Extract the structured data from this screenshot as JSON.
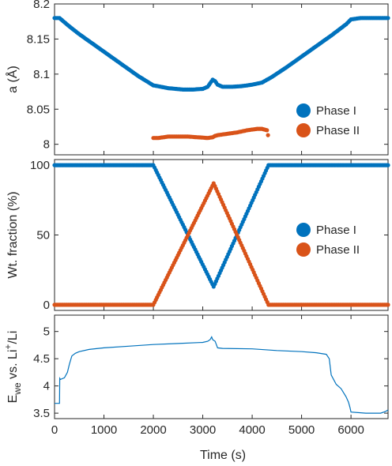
{
  "chart_data": [
    {
      "type": "scatter",
      "ylabel": "a (Å)",
      "xlim": [
        0,
        6750
      ],
      "ylim": [
        7.985,
        8.2
      ],
      "yticks": [
        "8",
        "8.05",
        "8.1",
        "8.15",
        "8.2"
      ],
      "grid": false,
      "legend_placement": "bottom-right",
      "legend": [
        "Phase I",
        "Phase II"
      ],
      "series": [
        {
          "name": "Phase I",
          "color": "#0072BD",
          "x": [
            0,
            100,
            150,
            300,
            500,
            800,
            1100,
            1400,
            1700,
            2000,
            2300,
            2600,
            2800,
            3000,
            3100,
            3150,
            3200,
            3250,
            3300,
            3400,
            3600,
            3800,
            4000,
            4200,
            4400,
            4700,
            5000,
            5300,
            5600,
            5900,
            6000,
            6200,
            6400,
            6600,
            6750
          ],
          "y": [
            8.18,
            8.18,
            8.177,
            8.168,
            8.157,
            8.142,
            8.127,
            8.112,
            8.097,
            8.084,
            8.08,
            8.078,
            8.078,
            8.079,
            8.082,
            8.087,
            8.092,
            8.09,
            8.085,
            8.082,
            8.082,
            8.083,
            8.085,
            8.088,
            8.096,
            8.11,
            8.125,
            8.14,
            8.155,
            8.171,
            8.178,
            8.18,
            8.18,
            8.18,
            8.18
          ]
        },
        {
          "name": "Phase II",
          "color": "#D95319",
          "x": [
            2000,
            2100,
            2300,
            2500,
            2700,
            2900,
            3100,
            3200,
            3250,
            3300,
            3500,
            3700,
            3900,
            4100,
            4200,
            4300,
            4320
          ],
          "y": [
            8.009,
            8.009,
            8.011,
            8.011,
            8.011,
            8.01,
            8.009,
            8.01,
            8.012,
            8.013,
            8.015,
            8.017,
            8.02,
            8.022,
            8.022,
            8.02,
            8.013
          ]
        }
      ]
    },
    {
      "type": "scatter",
      "ylabel": "Wt. fraction (%)",
      "xlim": [
        0,
        6750
      ],
      "ylim": [
        -4,
        104
      ],
      "yticks": [
        "0",
        "50",
        "100"
      ],
      "grid": false,
      "legend_placement": "right",
      "legend": [
        "Phase I",
        "Phase II"
      ],
      "series": [
        {
          "name": "Phase I",
          "color": "#0072BD",
          "x": [
            0,
            2000,
            3220,
            4330,
            6750
          ],
          "y": [
            100,
            100,
            13,
            100,
            100
          ]
        },
        {
          "name": "Phase II",
          "color": "#D95319",
          "x": [
            0,
            2000,
            3220,
            4330,
            6750
          ],
          "y": [
            0,
            0,
            87,
            0,
            0
          ]
        }
      ]
    },
    {
      "type": "line",
      "ylabel_parts": {
        "main": "E",
        "sub": "we",
        "mid": " vs. Li",
        "sup": "+",
        "end": "/Li"
      },
      "xlabel": "Time (s)",
      "xlim": [
        0,
        6750
      ],
      "ylim": [
        3.4,
        5.3
      ],
      "xticks": [
        "0",
        "1000",
        "2000",
        "3000",
        "4000",
        "5000",
        "6000"
      ],
      "yticks": [
        "3.5",
        "4",
        "4.5",
        "5"
      ],
      "grid": false,
      "series": [
        {
          "color": "#0072BD",
          "x": [
            0,
            100,
            105,
            120,
            200,
            260,
            300,
            350,
            420,
            500,
            700,
            1000,
            1500,
            2000,
            2500,
            3000,
            3100,
            3150,
            3180,
            3200,
            3250,
            3300,
            3400,
            4000,
            4500,
            5000,
            5300,
            5500,
            5560,
            5600,
            5700,
            5800,
            5900,
            5950,
            5980,
            6000,
            6300,
            6600,
            6700,
            6750
          ],
          "y": [
            3.68,
            3.68,
            4.14,
            4.12,
            4.15,
            4.25,
            4.4,
            4.55,
            4.6,
            4.63,
            4.67,
            4.7,
            4.73,
            4.76,
            4.78,
            4.8,
            4.82,
            4.85,
            4.9,
            4.85,
            4.82,
            4.7,
            4.69,
            4.68,
            4.65,
            4.63,
            4.61,
            4.58,
            4.5,
            4.2,
            4.03,
            3.95,
            3.8,
            3.7,
            3.6,
            3.52,
            3.5,
            3.5,
            3.53,
            3.56
          ]
        }
      ]
    }
  ]
}
